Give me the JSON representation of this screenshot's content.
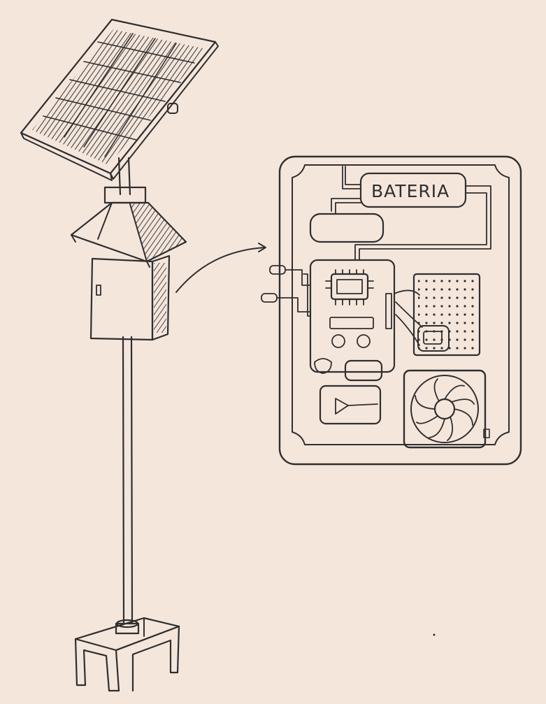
{
  "colors": {
    "background": "#f5e6dc",
    "ink": "#2f2f2f"
  },
  "labels": {
    "battery": "BATERIA"
  },
  "icons": [
    "solar-panel-icon",
    "pole-icon",
    "enclosure-icon",
    "arrow-icon",
    "battery-icon",
    "circuit-board-icon",
    "fan-icon",
    "breadboard-icon"
  ]
}
